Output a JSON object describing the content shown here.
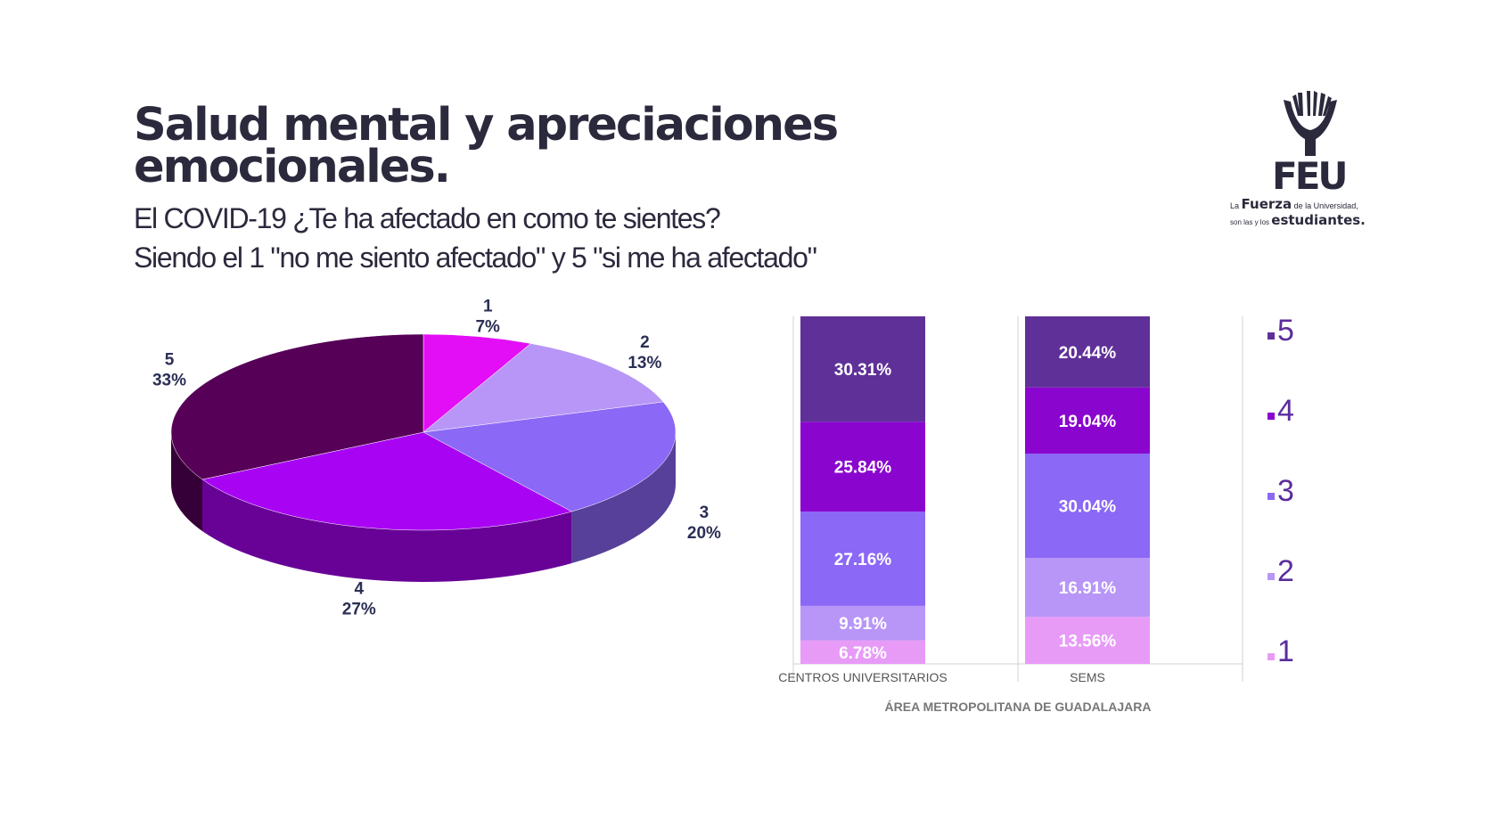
{
  "title": "Salud mental y apreciaciones emocionales.",
  "subtitle_line1": "El COVID-19 ¿Te ha afectado en como te sientes?",
  "subtitle_line2": "Siendo el 1 \"no me siento afectado\" y 5 \"si me ha afectado\"",
  "logo": {
    "name": "FEU",
    "tagline_prefix_1": "La",
    "tagline_bold_1": "Fuerza",
    "tagline_suffix_1": "de la Universidad,",
    "tagline_prefix_2": "son las y los",
    "tagline_bold_2": "estudiantes.",
    "icon": "hands-holding-book-icon"
  },
  "colors": {
    "1": "#e79bf7",
    "2": "#b896f7",
    "3": "#8b68f6",
    "4": "#8a06cf",
    "5": "#5f3098",
    "pie_1": "#e30ef5",
    "pie_2": "#b896f7",
    "pie_3": "#8b68f6",
    "pie_4": "#a804f3",
    "pie_5": "#560058"
  },
  "chart_data": [
    {
      "type": "pie",
      "style": "3d",
      "categories": [
        "1",
        "2",
        "3",
        "4",
        "5"
      ],
      "values": [
        7,
        13,
        20,
        27,
        33
      ],
      "value_labels": [
        "7%",
        "13%",
        "20%",
        "27%",
        "33%"
      ]
    },
    {
      "type": "bar",
      "stacked": true,
      "percent_stacked": true,
      "categories": [
        "CENTROS UNIVERSITARIOS",
        "SEMS"
      ],
      "xlabel": "ÁREA METROPOLITANA DE GUADALAJARA",
      "series": [
        {
          "name": "1",
          "values": [
            6.78,
            13.56
          ],
          "labels": [
            "6.78%",
            "13.56%"
          ]
        },
        {
          "name": "2",
          "values": [
            9.91,
            16.91
          ],
          "labels": [
            "9.91%",
            "16.91%"
          ]
        },
        {
          "name": "3",
          "values": [
            27.16,
            30.04
          ],
          "labels": [
            "27.16%",
            "30.04%"
          ]
        },
        {
          "name": "4",
          "values": [
            25.84,
            19.04
          ],
          "labels": [
            "25.84%",
            "19.04%"
          ]
        },
        {
          "name": "5",
          "values": [
            30.31,
            20.44
          ],
          "labels": [
            "30.31%",
            "20.44%"
          ]
        }
      ],
      "legend": [
        "5",
        "4",
        "3",
        "2",
        "1"
      ],
      "legend_position": "right"
    }
  ]
}
